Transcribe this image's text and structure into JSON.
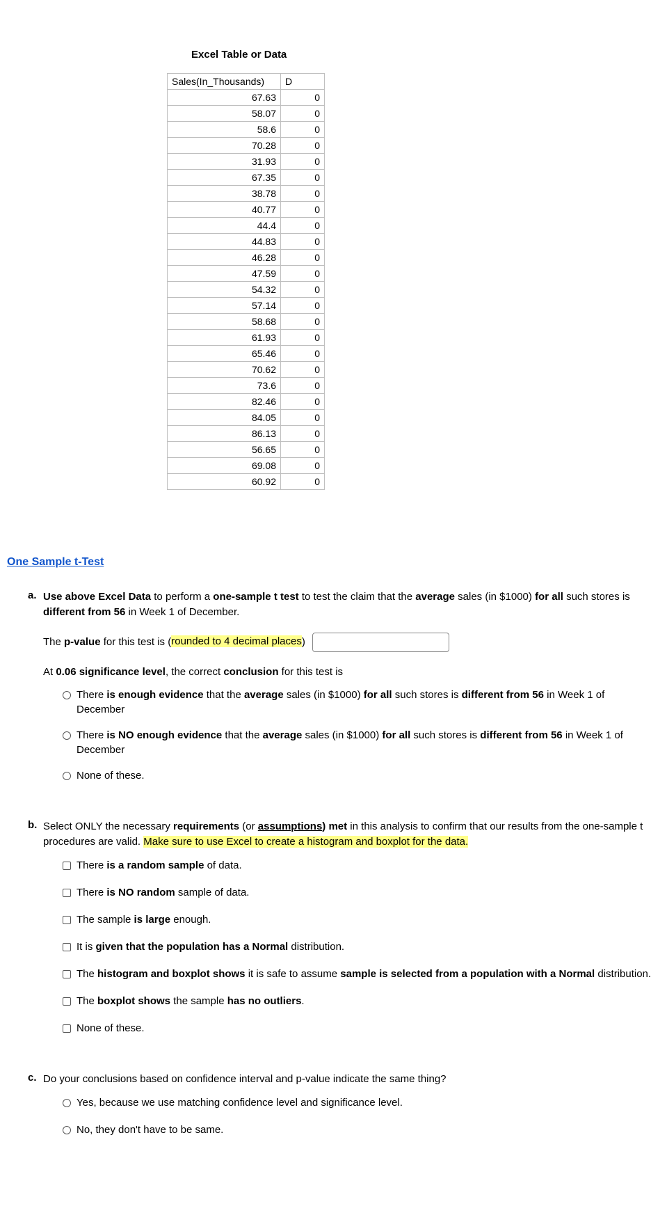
{
  "section_title": "Excel Table or Data",
  "table": {
    "columns": [
      "Sales(In_Thousands)",
      "D"
    ],
    "rows": [
      [
        "67.63",
        "0"
      ],
      [
        "58.07",
        "0"
      ],
      [
        "58.6",
        "0"
      ],
      [
        "70.28",
        "0"
      ],
      [
        "31.93",
        "0"
      ],
      [
        "67.35",
        "0"
      ],
      [
        "38.78",
        "0"
      ],
      [
        "40.77",
        "0"
      ],
      [
        "44.4",
        "0"
      ],
      [
        "44.83",
        "0"
      ],
      [
        "46.28",
        "0"
      ],
      [
        "47.59",
        "0"
      ],
      [
        "54.32",
        "0"
      ],
      [
        "57.14",
        "0"
      ],
      [
        "58.68",
        "0"
      ],
      [
        "61.93",
        "0"
      ],
      [
        "65.46",
        "0"
      ],
      [
        "70.62",
        "0"
      ],
      [
        "73.6",
        "0"
      ],
      [
        "82.46",
        "0"
      ],
      [
        "84.05",
        "0"
      ],
      [
        "86.13",
        "0"
      ],
      [
        "56.65",
        "0"
      ],
      [
        "69.08",
        "0"
      ],
      [
        "60.92",
        "0"
      ]
    ]
  },
  "heading": " One Sample t-Test",
  "qa": {
    "intro_1": "Use above Excel Data",
    "intro_2": " to perform a ",
    "intro_3": "one-sample t test",
    "intro_4": " to test the claim that the ",
    "intro_5": "average",
    "intro_6": " sales (in $1000) ",
    "intro_7": "for all",
    "intro_8": " such stores is ",
    "intro_9": "different from 56",
    "intro_10": " in Week 1 of December.",
    "pval_1": "The ",
    "pval_2": "p-value",
    "pval_3": " for this test is (",
    "pval_4": "rounded to 4 decimal places",
    "pval_5": ")",
    "sig_1": "At ",
    "sig_2": "0.06 significance level",
    "sig_3": ", the correct ",
    "sig_4": "conclusion",
    "sig_5": " for this test is",
    "a_opts": {
      "o1_a": "There ",
      "o1_b": "is enough evidence",
      "o1_c": " that the ",
      "o1_d": "average",
      "o1_e": " sales (in $1000) ",
      "o1_f": "for all",
      "o1_g": " such stores is ",
      "o1_h": "different from 56",
      "o1_i": " in Week 1 of December",
      "o2_a": "There ",
      "o2_b": "is NO enough evidence",
      "o2_c": " that the ",
      "o2_d": "average",
      "o2_e": " sales (in $1000) ",
      "o2_f": "for all",
      "o2_g": " such stores is ",
      "o2_h": "different from 56",
      "o2_i": " in Week 1 of December",
      "o3": "None of these."
    }
  },
  "qb": {
    "intro_1": "Select ONLY the necessary ",
    "intro_2": "requirements",
    "intro_3": " (or ",
    "intro_4": "assumptions",
    "intro_5": ") met",
    "intro_6": " in this analysis to confirm that our results from the one-sample t procedures are valid. ",
    "intro_7": "Make sure to use Excel to create a histogram and boxplot for the data.",
    "opts": {
      "c1_a": "There ",
      "c1_b": "is a random sample",
      "c1_c": " of data.",
      "c2_a": "There ",
      "c2_b": "is NO random",
      "c2_c": " sample of data.",
      "c3_a": "The sample ",
      "c3_b": "is large",
      "c3_c": " enough.",
      "c4_a": "It is ",
      "c4_b": "given that the population has a Normal",
      "c4_c": " distribution.",
      "c5_a": "The ",
      "c5_b": "histogram and boxplot shows",
      "c5_c": " it is safe to assume ",
      "c5_d": "sample is selected from a population with a Normal",
      "c5_e": " distribution.",
      "c6_a": "The ",
      "c6_b": "boxplot shows",
      "c6_c": " the sample ",
      "c6_d": "has no outliers",
      "c6_e": ".",
      "c7": "None of these."
    }
  },
  "qc": {
    "text": "Do your conclusions based on confidence interval and p-value indicate the same thing?",
    "o1": "Yes, because we use matching confidence level and significance level.",
    "o2": "No, they don't have to be same."
  }
}
